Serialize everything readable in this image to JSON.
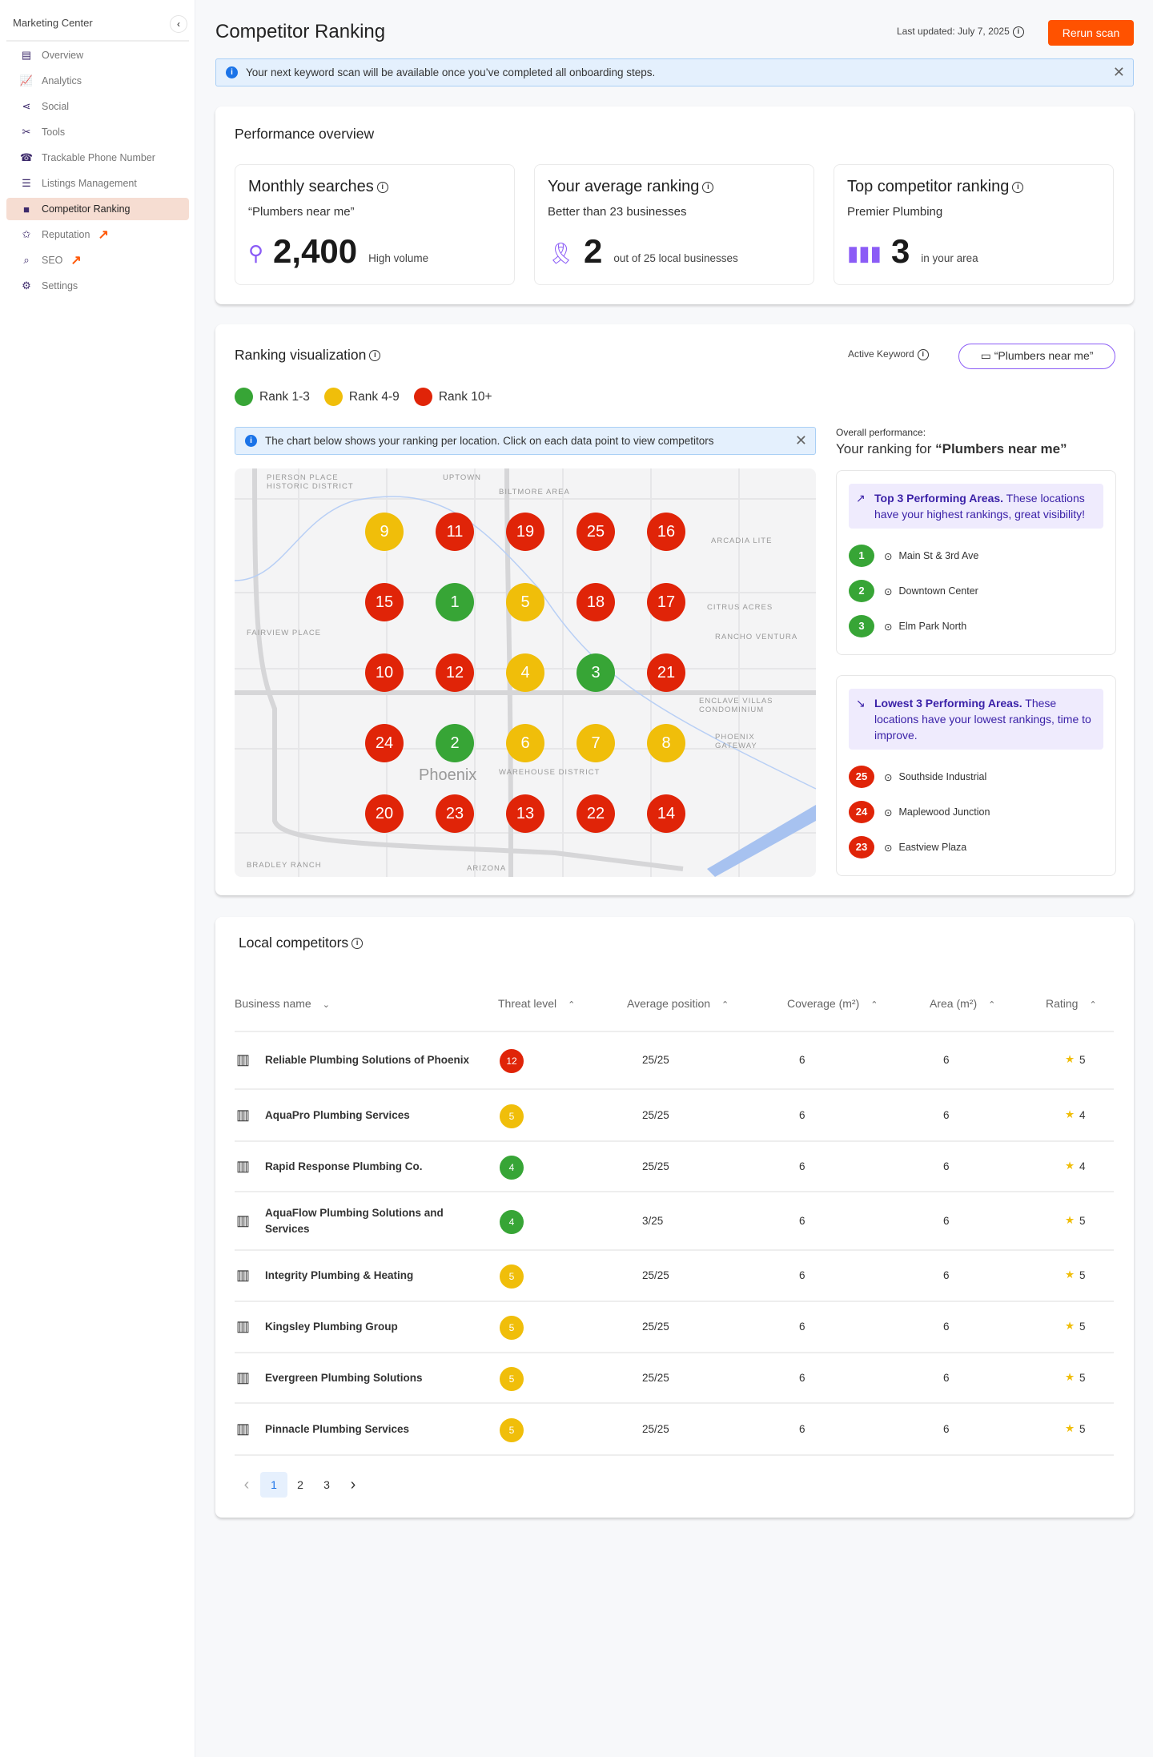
{
  "colors": {
    "green": "#37a536",
    "yellow": "#f0be0a",
    "red": "#e02408",
    "accent": "#ff5200",
    "purple": "#8b5cf6"
  },
  "sidebar": {
    "title": "Marketing Center",
    "items": [
      {
        "label": "Overview",
        "icon": "dashboard-icon",
        "glyph": "▤"
      },
      {
        "label": "Analytics",
        "icon": "analytics-icon",
        "glyph": "📈"
      },
      {
        "label": "Social",
        "icon": "share-icon",
        "glyph": "⋖"
      },
      {
        "label": "Tools",
        "icon": "tools-icon",
        "glyph": "✂"
      },
      {
        "label": "Trackable Phone Number",
        "icon": "phone-icon",
        "glyph": "☎"
      },
      {
        "label": "Listings Management",
        "icon": "checklist-icon",
        "glyph": "☰"
      },
      {
        "label": "Competitor Ranking",
        "icon": "square-icon",
        "glyph": "■",
        "active": true
      },
      {
        "label": "Reputation",
        "icon": "review-icon",
        "glyph": "✩",
        "external": true
      },
      {
        "label": "SEO",
        "icon": "seo-icon",
        "glyph": "⌕",
        "external": true
      },
      {
        "label": "Settings",
        "icon": "gear-icon",
        "glyph": "⚙"
      }
    ]
  },
  "header": {
    "title": "Competitor Ranking",
    "last_updated": "Last updated: July 7, 2025",
    "rerun": "Rerun scan"
  },
  "banner": {
    "text": "Your next keyword scan will be available once you’ve completed all onboarding steps."
  },
  "performance": {
    "title": "Performance overview",
    "cards": [
      {
        "title": "Monthly searches",
        "label": "“Plumbers near me”",
        "value": "2,400",
        "suffix": "High volume",
        "icon": "search-icon"
      },
      {
        "title": "Your average ranking",
        "label": "Better than 23 businesses",
        "value": "2",
        "suffix": "out of 25 local businesses",
        "icon": "award-icon"
      },
      {
        "title": "Top competitor ranking",
        "label": "Premier Plumbing",
        "value": "3",
        "suffix": "in your area",
        "icon": "bar-chart-icon"
      }
    ]
  },
  "ranking": {
    "title": "Ranking visualization",
    "active_keyword_label": "Active Keyword",
    "keyword": "“Plumbers near me”",
    "legend": [
      {
        "label": "Rank 1-3",
        "color": "#37a536"
      },
      {
        "label": "Rank 4-9",
        "color": "#f0be0a"
      },
      {
        "label": "Rank 10+",
        "color": "#e02408"
      }
    ],
    "info": "The chart below shows your ranking per location. Click on each data point to view competitors",
    "grid": [
      [
        9,
        11,
        19,
        25,
        16
      ],
      [
        15,
        1,
        5,
        18,
        17
      ],
      [
        10,
        12,
        4,
        3,
        21
      ],
      [
        24,
        2,
        6,
        7,
        8
      ],
      [
        20,
        23,
        13,
        22,
        14
      ]
    ],
    "map_labels": [
      "UPTOWN",
      "PIERSON PLACE HISTORIC DISTRICT",
      "BILTMORE AREA",
      "ARCADIA LITE",
      "CITRUS ACRES",
      "RANCHO VENTURA",
      "FAIRVIEW PLACE",
      "ENCLAVE VILLAS CONDOMINIUM",
      "PHOENIX GATEWAY",
      "Phoenix",
      "WAREHOUSE DISTRICT",
      "BRADLEY RANCH",
      "ARIZONA"
    ],
    "overall_label": "Overall performance:",
    "ranking_for": "Your ranking for ",
    "ranking_for_keyword": "“Plumbers near me”",
    "top": {
      "title": "Top 3 Performing Areas.",
      "desc": " These locations have your highest rankings, great visibility!",
      "items": [
        {
          "rank": "1",
          "name": "Main St & 3rd Ave"
        },
        {
          "rank": "2",
          "name": "Downtown Center"
        },
        {
          "rank": "3",
          "name": "Elm Park North"
        }
      ]
    },
    "lowest": {
      "title": "Lowest 3 Performing Areas.",
      "desc": " These locations have your lowest rankings, time to improve.",
      "items": [
        {
          "rank": "25",
          "name": "Southside Industrial"
        },
        {
          "rank": "24",
          "name": "Maplewood Junction"
        },
        {
          "rank": "23",
          "name": "Eastview Plaza"
        }
      ]
    }
  },
  "competitors": {
    "title": "Local competitors",
    "columns": [
      "Business name",
      "Threat level",
      "Average position",
      "Coverage (m²)",
      "Area (m²)",
      "Rating"
    ],
    "rows": [
      {
        "name": "Reliable Plumbing Solutions of Phoenix",
        "threat": "12",
        "level": "red",
        "avg": "25/25",
        "coverage": "6",
        "area": "6",
        "rating": "5"
      },
      {
        "name": "AquaPro Plumbing Services",
        "threat": "5",
        "level": "yellow",
        "avg": "25/25",
        "coverage": "6",
        "area": "6",
        "rating": "4"
      },
      {
        "name": "Rapid Response Plumbing Co.",
        "threat": "4",
        "level": "green",
        "avg": "25/25",
        "coverage": "6",
        "area": "6",
        "rating": "4"
      },
      {
        "name": "AquaFlow Plumbing Solutions and Services",
        "threat": "4",
        "level": "green",
        "avg": "3/25",
        "coverage": "6",
        "area": "6",
        "rating": "5"
      },
      {
        "name": "Integrity Plumbing & Heating",
        "threat": "5",
        "level": "yellow",
        "avg": "25/25",
        "coverage": "6",
        "area": "6",
        "rating": "5"
      },
      {
        "name": "Kingsley Plumbing Group",
        "threat": "5",
        "level": "yellow",
        "avg": "25/25",
        "coverage": "6",
        "area": "6",
        "rating": "5"
      },
      {
        "name": "Evergreen Plumbing Solutions",
        "threat": "5",
        "level": "yellow",
        "avg": "25/25",
        "coverage": "6",
        "area": "6",
        "rating": "5"
      },
      {
        "name": "Pinnacle Plumbing Services",
        "threat": "5",
        "level": "yellow",
        "avg": "25/25",
        "coverage": "6",
        "area": "6",
        "rating": "5"
      }
    ],
    "pagination": {
      "prev": "‹",
      "pages": [
        "1",
        "2",
        "3"
      ],
      "current": "1",
      "next": "›"
    }
  }
}
